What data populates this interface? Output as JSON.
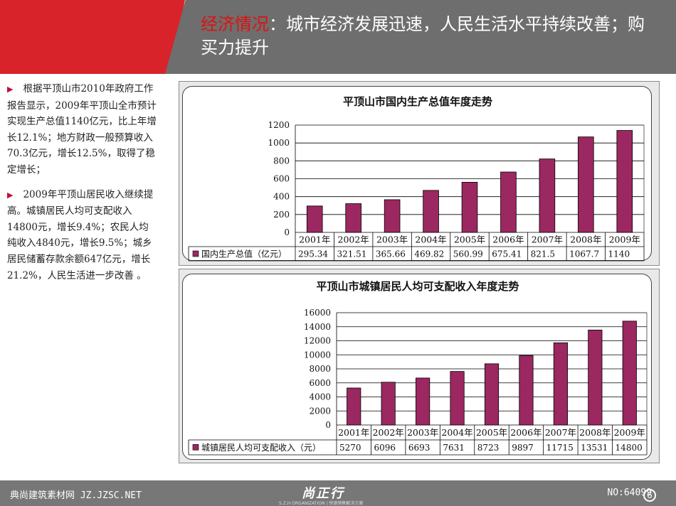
{
  "header": {
    "accent": "经济情况",
    "title": "：城市经济发展迅速，人民生活水平持续改善；购买力提升"
  },
  "left": {
    "p1": "根据平顶山市2010年政府工作报告显示，2009年平顶山全市预计实现生产总值1140亿元，比上年增长12.1%；地方财政一般预算收入70.3亿元，增长12.5%，取得了稳定增长；",
    "p2": "2009年平顶山居民收入继续提高。城镇居民人均可支配收入14800元，增长9.4%；农民人均纯收入4840元，增长9.5%；城乡居民储蓄存款余额647亿元，增长21.2%，人民生活进一步改善 。"
  },
  "chart_data": [
    {
      "type": "bar",
      "title": "平顶山市国内生产总值年度走势",
      "categories": [
        "2001年",
        "2002年",
        "2003年",
        "2004年",
        "2005年",
        "2006年",
        "2007年",
        "2008年",
        "2009年"
      ],
      "series": [
        {
          "name": "国内生产总值（亿元）",
          "values": [
            295.34,
            321.51,
            365.66,
            469.82,
            560.99,
            675.41,
            821.5,
            1067.7,
            1140
          ]
        }
      ],
      "value_labels": [
        "295.34",
        "321.51",
        "365.66",
        "469.82",
        "560.99",
        "675.41",
        "821.5",
        "1067.7",
        "1140"
      ],
      "ylim": [
        0,
        1200
      ],
      "yticks": [
        "0",
        "200",
        "400",
        "600",
        "800",
        "1000",
        "1200"
      ],
      "color": "#9b2860",
      "grid": true,
      "legend": "data-table"
    },
    {
      "type": "bar",
      "title": "平顶山市城镇居民人均可支配收入年度走势",
      "categories": [
        "2001年",
        "2002年",
        "2003年",
        "2004年",
        "2005年",
        "2006年",
        "2007年",
        "2008年",
        "2009年"
      ],
      "series": [
        {
          "name": "城镇居民人均可支配收入（元）",
          "values": [
            5270,
            6096,
            6693,
            7631,
            8723,
            9897,
            11715,
            13531,
            14800
          ]
        }
      ],
      "value_labels": [
        "5270",
        "6096",
        "6693",
        "7631",
        "8723",
        "9897",
        "11715",
        "13531",
        "14800"
      ],
      "ylim": [
        0,
        16000
      ],
      "yticks": [
        "0",
        "2000",
        "4000",
        "6000",
        "8000",
        "10000",
        "12000",
        "14000",
        "16000"
      ],
      "color": "#9b2860",
      "grid": true,
      "legend": "data-table"
    }
  ],
  "footer": {
    "left": "典尚建筑素材网 JZ.JZSC.NET",
    "logo": "尚正行",
    "logo_sub": "S.Z.H ORGANIZATION | 快速销售解决方案",
    "right": "NO:64099",
    "page": "6"
  }
}
